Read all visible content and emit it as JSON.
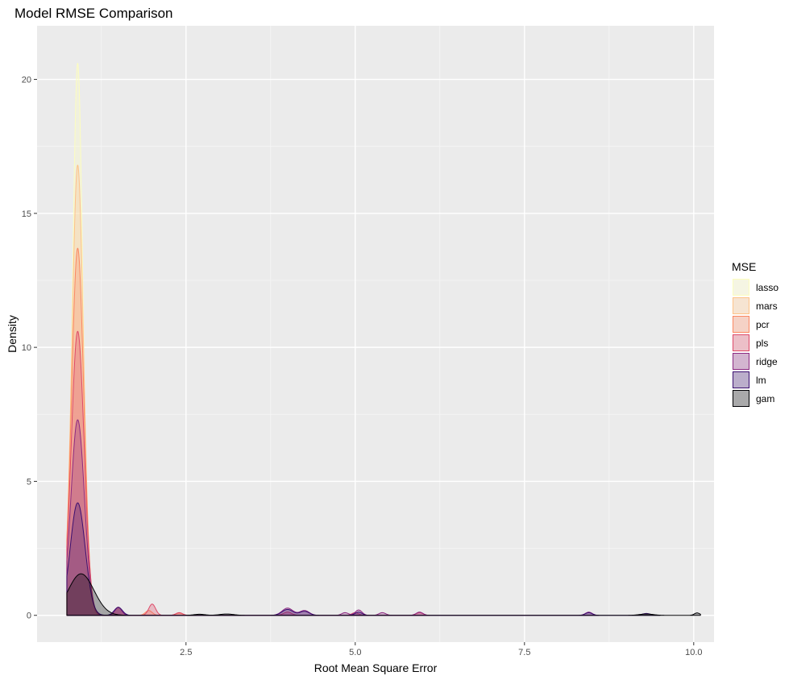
{
  "chart_data": {
    "type": "area",
    "subtype": "density",
    "title": "Model RMSE Comparison",
    "xlabel": "Root Mean Square Error",
    "ylabel": "Density",
    "xlim": [
      0.3,
      10.3
    ],
    "ylim": [
      -1.0,
      22.0
    ],
    "x_ticks": [
      2.5,
      5.0,
      7.5,
      10.0
    ],
    "x_tick_labels": [
      "2.5",
      "5.0",
      "7.5",
      "10.0"
    ],
    "y_ticks": [
      0,
      5,
      10,
      15,
      20
    ],
    "y_tick_labels": [
      "0",
      "5",
      "10",
      "15",
      "20"
    ],
    "grid": true,
    "legend_title": "MSE",
    "legend_position": "right",
    "series": [
      {
        "name": "lasso",
        "color": "#fcfdbf",
        "peak_x": 0.9,
        "peak_y": 20.6,
        "width": 0.075,
        "xmin": 0.74,
        "xmax": 1.25,
        "bumps": []
      },
      {
        "name": "mars",
        "color": "#fec287",
        "peak_x": 0.9,
        "peak_y": 16.8,
        "width": 0.085,
        "xmin": 0.74,
        "xmax": 1.7,
        "bumps": [
          [
            1.5,
            0.3,
            0.05
          ]
        ]
      },
      {
        "name": "pcr",
        "color": "#fb8761",
        "peak_x": 0.9,
        "peak_y": 13.7,
        "width": 0.09,
        "xmin": 0.74,
        "xmax": 2.6,
        "bumps": [
          [
            1.5,
            0.3,
            0.05
          ],
          [
            1.95,
            0.18,
            0.05
          ],
          [
            2.4,
            0.08,
            0.05
          ]
        ]
      },
      {
        "name": "pls",
        "color": "#de4968",
        "peak_x": 0.9,
        "peak_y": 10.6,
        "width": 0.095,
        "xmin": 0.74,
        "xmax": 6.1,
        "bumps": [
          [
            1.5,
            0.3,
            0.05
          ],
          [
            2.0,
            0.42,
            0.05
          ],
          [
            2.4,
            0.1,
            0.05
          ],
          [
            4.0,
            0.12,
            0.06
          ],
          [
            5.0,
            0.1,
            0.05
          ],
          [
            5.95,
            0.1,
            0.05
          ]
        ]
      },
      {
        "name": "ridge",
        "color": "#8c2981",
        "peak_x": 0.9,
        "peak_y": 7.3,
        "width": 0.1,
        "xmin": 0.74,
        "xmax": 8.6,
        "bumps": [
          [
            1.5,
            0.3,
            0.05
          ],
          [
            4.0,
            0.27,
            0.08
          ],
          [
            4.25,
            0.18,
            0.07
          ],
          [
            4.85,
            0.1,
            0.05
          ],
          [
            5.05,
            0.2,
            0.05
          ],
          [
            5.4,
            0.1,
            0.05
          ],
          [
            5.95,
            0.12,
            0.05
          ],
          [
            8.45,
            0.12,
            0.05
          ]
        ]
      },
      {
        "name": "lm",
        "color": "#3b0f70",
        "peak_x": 0.9,
        "peak_y": 4.2,
        "width": 0.11,
        "xmin": 0.74,
        "xmax": 9.5,
        "bumps": [
          [
            1.5,
            0.3,
            0.06
          ],
          [
            4.0,
            0.22,
            0.08
          ],
          [
            4.25,
            0.15,
            0.07
          ],
          [
            5.05,
            0.12,
            0.05
          ],
          [
            8.45,
            0.1,
            0.05
          ],
          [
            9.3,
            0.07,
            0.06
          ]
        ]
      },
      {
        "name": "gam",
        "color": "#000004",
        "peak_x": 0.95,
        "peak_y": 1.55,
        "width": 0.19,
        "xmin": 0.74,
        "xmax": 10.1,
        "bumps": [
          [
            2.7,
            0.04,
            0.08
          ],
          [
            3.1,
            0.05,
            0.1
          ],
          [
            9.3,
            0.05,
            0.1
          ],
          [
            10.05,
            0.09,
            0.04
          ]
        ]
      }
    ]
  }
}
